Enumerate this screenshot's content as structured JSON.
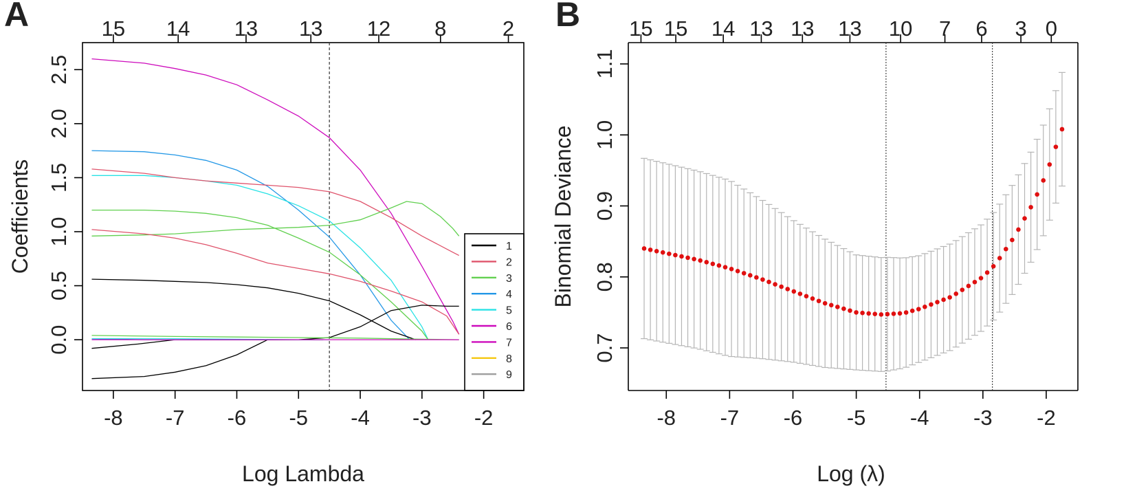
{
  "chart_data": [
    {
      "panel": "A",
      "type": "line",
      "xlabel": "Log Lambda",
      "ylabel": "Coefficients",
      "xlim": [
        -8.5,
        -1.35
      ],
      "ylim": [
        -0.47,
        2.75
      ],
      "xticks": [
        -8,
        -7,
        -6,
        -5,
        -4,
        -3,
        -2
      ],
      "yticks": [
        0.0,
        0.5,
        1.0,
        1.5,
        2.0,
        2.5
      ],
      "ytick_labels": [
        "0.0",
        "0.5",
        "1.0",
        "1.5",
        "2.0",
        "2.5"
      ],
      "top_axis": {
        "positions": [
          -8.0,
          -6.95,
          -5.85,
          -4.8,
          -3.7,
          -2.7,
          -1.6
        ],
        "labels": [
          "15",
          "14",
          "13",
          "13",
          "12",
          "8",
          "2"
        ]
      },
      "reference_line_x": -4.5,
      "legend": {
        "placement": "right",
        "entries": [
          {
            "label": "1",
            "color": "#000000"
          },
          {
            "label": "2",
            "color": "#df536b"
          },
          {
            "label": "3",
            "color": "#61d04f"
          },
          {
            "label": "4",
            "color": "#2297e6"
          },
          {
            "label": "5",
            "color": "#28e2e5"
          },
          {
            "label": "6",
            "color": "#cd0bbc"
          },
          {
            "label": "7",
            "color": "#cd0bbc"
          },
          {
            "label": "8",
            "color": "#f5c710"
          },
          {
            "label": "9",
            "color": "#9e9e9e"
          }
        ]
      },
      "series": [
        {
          "name": "magenta-top",
          "color": "#cd0bbc",
          "x": [
            -8.35,
            -7.5,
            -7,
            -6.5,
            -6,
            -5.5,
            -5,
            -4.5,
            -4,
            -3.5,
            -3,
            -2.5,
            -2.4
          ],
          "y": [
            2.6,
            2.56,
            2.51,
            2.45,
            2.36,
            2.22,
            2.07,
            1.87,
            1.57,
            1.17,
            0.68,
            0.17,
            0.05
          ]
        },
        {
          "name": "blue-high",
          "color": "#2297e6",
          "x": [
            -8.35,
            -7.5,
            -7,
            -6.5,
            -6,
            -5.5,
            -5,
            -4.5,
            -4,
            -3.5,
            -3.2
          ],
          "y": [
            1.75,
            1.74,
            1.71,
            1.66,
            1.57,
            1.42,
            1.2,
            0.95,
            0.6,
            0.18,
            0.0
          ]
        },
        {
          "name": "cyan",
          "color": "#28e2e5",
          "x": [
            -8.35,
            -7.5,
            -7,
            -6.5,
            -6,
            -5.5,
            -5,
            -4.5,
            -4,
            -3.5,
            -3,
            -2.9
          ],
          "y": [
            1.52,
            1.52,
            1.5,
            1.47,
            1.43,
            1.35,
            1.24,
            1.1,
            0.85,
            0.55,
            0.12,
            0.0
          ]
        },
        {
          "name": "red-high",
          "color": "#df536b",
          "x": [
            -8.35,
            -7.5,
            -7,
            -6.5,
            -6,
            -5.5,
            -5,
            -4.5,
            -4,
            -3.5,
            -3,
            -2.5,
            -2.4
          ],
          "y": [
            1.58,
            1.54,
            1.5,
            1.47,
            1.45,
            1.43,
            1.41,
            1.37,
            1.28,
            1.13,
            0.96,
            0.81,
            0.78
          ]
        },
        {
          "name": "green-descending",
          "color": "#61d04f",
          "x": [
            -8.35,
            -7.5,
            -7,
            -6.5,
            -6,
            -5.5,
            -5,
            -4.5,
            -4,
            -3.5,
            -3,
            -2.9
          ],
          "y": [
            1.2,
            1.2,
            1.19,
            1.17,
            1.13,
            1.06,
            0.94,
            0.81,
            0.6,
            0.35,
            0.08,
            0.0
          ]
        },
        {
          "name": "green-rising",
          "color": "#61d04f",
          "x": [
            -8.35,
            -7.5,
            -7,
            -6.5,
            -6,
            -5.5,
            -5,
            -4.5,
            -4,
            -3.5,
            -3.25,
            -3,
            -2.7,
            -2.5,
            -2.4
          ],
          "y": [
            0.96,
            0.97,
            0.98,
            1.0,
            1.02,
            1.03,
            1.04,
            1.06,
            1.11,
            1.22,
            1.28,
            1.26,
            1.14,
            1.03,
            0.96
          ]
        },
        {
          "name": "red-low",
          "color": "#df536b",
          "x": [
            -8.35,
            -7.5,
            -7,
            -6.5,
            -6,
            -5.5,
            -5,
            -4.5,
            -4,
            -3.5,
            -3,
            -2.6,
            -2.4
          ],
          "y": [
            1.02,
            0.98,
            0.94,
            0.88,
            0.8,
            0.71,
            0.66,
            0.61,
            0.54,
            0.45,
            0.35,
            0.22,
            0.05
          ]
        },
        {
          "name": "black-upper",
          "color": "#000000",
          "x": [
            -8.35,
            -7.5,
            -7,
            -6.5,
            -6,
            -5.5,
            -5,
            -4.5,
            -4,
            -3.5,
            -3.1
          ],
          "y": [
            0.56,
            0.55,
            0.54,
            0.53,
            0.51,
            0.48,
            0.43,
            0.36,
            0.23,
            0.08,
            0.0
          ]
        },
        {
          "name": "black-rising",
          "color": "#000000",
          "x": [
            -8.35,
            -7.5,
            -7,
            -6.5,
            -6,
            -5.5,
            -5,
            -4.5,
            -4,
            -3.5,
            -3,
            -2.6,
            -2.4
          ],
          "y": [
            -0.36,
            -0.34,
            -0.3,
            -0.24,
            -0.14,
            0.0,
            0.0,
            0.02,
            0.12,
            0.27,
            0.32,
            0.31,
            0.31
          ]
        },
        {
          "name": "black-low",
          "color": "#000000",
          "x": [
            -8.35,
            -7.6,
            -7.0,
            -6.0,
            -5.0,
            -4.6
          ],
          "y": [
            -0.08,
            -0.04,
            0.0,
            0.0,
            0.0,
            0.0
          ]
        },
        {
          "name": "navy-zero",
          "color": "#1f3c88",
          "x": [
            -8.35,
            -7.5,
            -7.0,
            -6.0,
            -5.0,
            -4.6
          ],
          "y": [
            0.01,
            0.0,
            0.0,
            0.0,
            0.0,
            0.0
          ]
        },
        {
          "name": "green-near-zero",
          "color": "#61d04f",
          "x": [
            -8.35,
            -7,
            -6,
            -5,
            -4,
            -3,
            -2.4
          ],
          "y": [
            0.04,
            0.03,
            0.025,
            0.02,
            0.015,
            0.005,
            0.0
          ]
        },
        {
          "name": "cyan-near-zero",
          "color": "#28e2e5",
          "x": [
            -8.35,
            -7,
            -6,
            -5,
            -4.5
          ],
          "y": [
            0.01,
            0.01,
            0.005,
            0.0,
            0.0
          ]
        },
        {
          "name": "magenta-zero",
          "color": "#cd0bbc",
          "x": [
            -8.35,
            -6,
            -4,
            -2.4
          ],
          "y": [
            0.0,
            0.0,
            0.0,
            0.0
          ]
        }
      ]
    },
    {
      "panel": "B",
      "type": "scatter",
      "xlabel": "Log  (λ)",
      "ylabel": "Binomial Deviance",
      "xlim": [
        -8.6,
        -1.5
      ],
      "ylim": [
        0.64,
        1.13
      ],
      "xticks": [
        -8,
        -7,
        -6,
        -5,
        -4,
        -3,
        -2
      ],
      "yticks": [
        0.7,
        0.8,
        0.9,
        1.0,
        1.1
      ],
      "ytick_labels": [
        "0.7",
        "0.8",
        "0.9",
        "1.0",
        "1.1"
      ],
      "top_axis": {
        "positions": [
          -8.4,
          -7.85,
          -7.1,
          -6.5,
          -5.85,
          -5.1,
          -4.3,
          -3.6,
          -3.02,
          -2.4,
          -1.92
        ],
        "labels": [
          "15",
          "15",
          "14",
          "13",
          "13",
          "13",
          "10",
          "7",
          "6",
          "3",
          "0"
        ]
      },
      "reference_lines_x": [
        -4.53,
        -2.85
      ],
      "x_range": [
        -8.35,
        -1.75
      ],
      "n_points": 68,
      "mean_knots": {
        "x": [
          -8.35,
          -7.5,
          -7.0,
          -6.5,
          -6.0,
          -5.5,
          -5.0,
          -4.6,
          -4.25,
          -4.0,
          -3.5,
          -3.0,
          -2.8,
          -2.5,
          -2.2,
          -2.0,
          -1.75
        ],
        "y": [
          0.84,
          0.824,
          0.812,
          0.797,
          0.78,
          0.763,
          0.75,
          0.747,
          0.749,
          0.755,
          0.772,
          0.8,
          0.818,
          0.857,
          0.905,
          0.945,
          1.008
        ]
      },
      "se_knots": {
        "x": [
          -8.35,
          -7.0,
          -6.0,
          -5.0,
          -4.5,
          -4.0,
          -3.5,
          -3.0,
          -2.5,
          -2.0,
          -1.75
        ],
        "y": [
          0.127,
          0.124,
          0.1,
          0.081,
          0.08,
          0.075,
          0.075,
          0.075,
          0.077,
          0.078,
          0.08
        ]
      }
    }
  ],
  "panel_labels": {
    "a": "A",
    "b": "B"
  }
}
